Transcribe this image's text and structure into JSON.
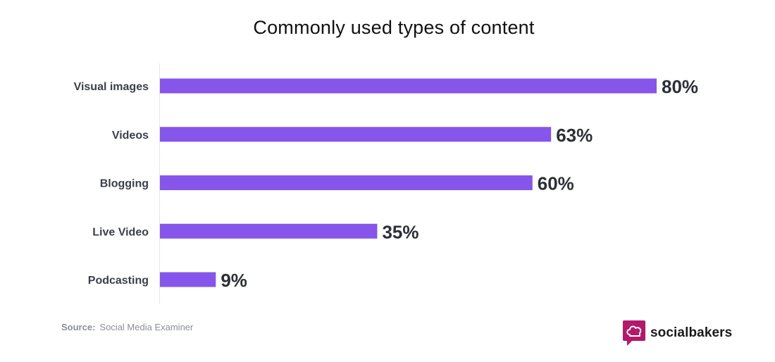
{
  "chart_data": {
    "type": "bar",
    "orientation": "horizontal",
    "title": "Commonly used types of content",
    "categories": [
      "Visual images",
      "Videos",
      "Blogging",
      "Live Video",
      "Podcasting"
    ],
    "values": [
      80,
      63,
      60,
      35,
      9
    ],
    "value_labels": [
      "80%",
      "63%",
      "60%",
      "35%",
      "9%"
    ],
    "xlim": [
      0,
      80
    ],
    "grid": false,
    "bar_color": "#8655e9"
  },
  "footer": {
    "source_key": "Source:",
    "source_value": "Social Media Examiner",
    "brand_name": "socialbakers",
    "brand_color": "#b5176d"
  }
}
